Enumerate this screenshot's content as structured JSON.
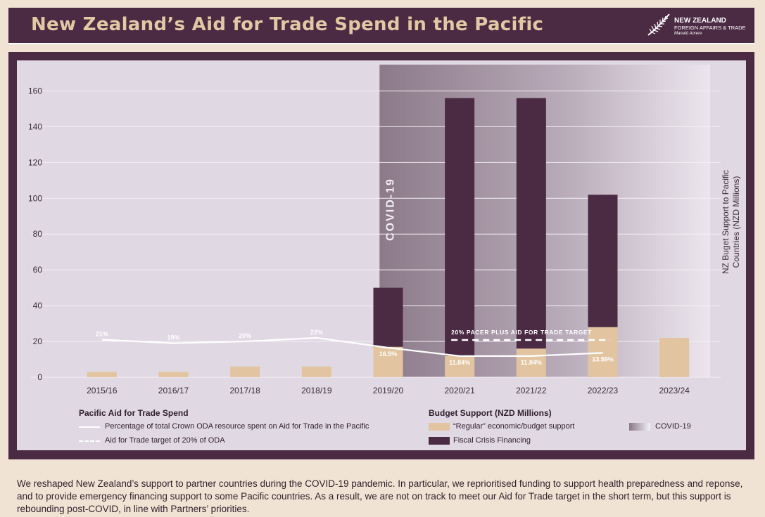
{
  "header": {
    "title": "New Zealand’s Aid for Trade Spend in the Pacific"
  },
  "logo": {
    "line1": "NEW ZEALAND",
    "line2": "FOREIGN AFFAIRS & TRADE",
    "line3": "Manatū Aorere",
    "icon": "silver-fern-icon"
  },
  "chart_data": {
    "type": "bar",
    "categories": [
      "2015/16",
      "2016/17",
      "2017/18",
      "2018/19",
      "2019/20",
      "2020/21",
      "2021/22",
      "2022/23",
      "2023/24"
    ],
    "ylabel": "NZ Buget Support to Pacific Countries (NZD Millions)",
    "ylim": [
      0,
      170
    ],
    "yticks": [
      0,
      20,
      40,
      60,
      80,
      100,
      120,
      140,
      160
    ],
    "grid": true,
    "stacked": true,
    "series": [
      {
        "name": "“Regular” economic/budget support",
        "color": "#e2c5a0",
        "values": [
          3,
          3,
          6,
          6,
          17,
          12,
          16,
          28,
          22
        ]
      },
      {
        "name": "Fiscal Crisis Financing",
        "color": "#4b2a44",
        "values": [
          0,
          0,
          0,
          0,
          33,
          144,
          140,
          74,
          0
        ]
      }
    ],
    "line": {
      "name": "Percentage of total Crown ODA resource spent on Aid for Trade in the Pacific",
      "color": "#ffffff",
      "values": [
        21,
        19,
        20,
        22,
        16.5,
        11.84,
        11.84,
        13.59
      ],
      "labels": [
        "21%",
        "19%",
        "20%",
        "22%",
        "16.5%",
        "11.84%",
        "11.84%",
        "13.59%"
      ]
    },
    "target": {
      "name": "Aid for Trade target of 20% of ODA",
      "label": "20% PACER PLUS AID FOR TRADE TARGET",
      "value": 20,
      "from_category": "2020/21",
      "to_category": "2022/23"
    },
    "covid_band": {
      "label": "COVID-19",
      "from_category": "2019/20",
      "to_category": "2023/24"
    }
  },
  "legend": {
    "left_title": "Pacific Aid for Trade Spend",
    "line_label": "Percentage of total Crown ODA resource spent on Aid for Trade in the Pacific",
    "target_label": "Aid for Trade target of 20% of ODA",
    "right_title": "Budget Support (NZD Millions)",
    "regular_label": "“Regular” economic/budget support",
    "fiscal_label": "Fiscal Crisis Financing",
    "covid_label": "COVID-19"
  },
  "body_text": "We reshaped  New Zealand’s support to partner countries during the COVID-19 pandemic. In particular, we reprioritised funding to support health preparedness and reponse, and to provide emergency financing support to some Pacific countries. As a result, we are not on track to meet our Aid for Trade target in the short term, but this support is rebounding post-COVID, in line with Partners’ priorities."
}
